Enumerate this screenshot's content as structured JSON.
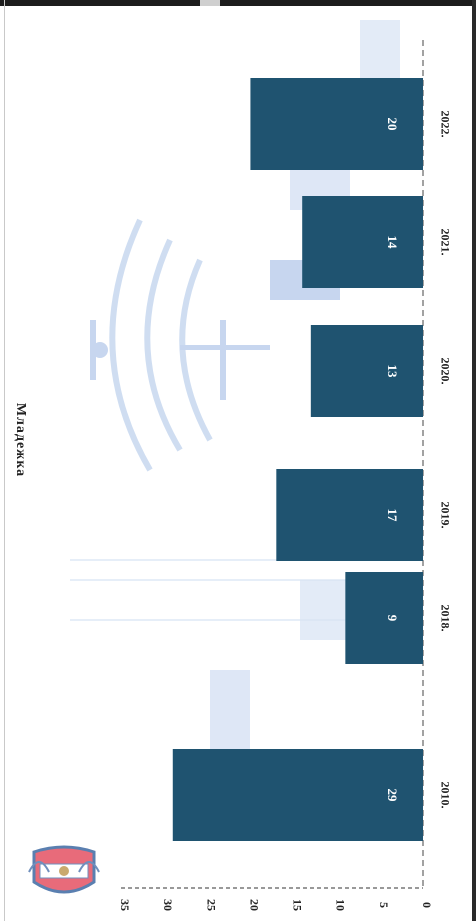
{
  "chart_data": {
    "type": "bar",
    "title": "",
    "categories": [
      "2010.",
      "2018.",
      "2019.",
      "2020.",
      "2021.",
      "2022."
    ],
    "values": [
      29,
      9,
      17,
      13,
      14,
      20
    ],
    "ylim": [
      0,
      35
    ],
    "yticks": [
      0,
      5,
      10,
      15,
      20,
      25,
      30,
      35
    ],
    "xlabel": "",
    "ylabel": "",
    "bar_color": "#1f5370",
    "label_color": "#ffffff",
    "grid": false,
    "orientation": "rotated-90"
  },
  "header": {
    "title_fragment": "Младежка"
  },
  "logo": {
    "icon": "crest-logo-icon"
  }
}
